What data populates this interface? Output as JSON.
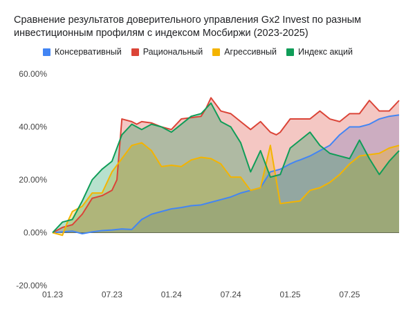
{
  "chart_data": {
    "type": "area",
    "title": "Сравнение результатов доверительного управления Gx2 Invest по разным инвестиционным профилям с индексом  Мосбиржи (2023-2025)",
    "xlabel": "",
    "ylabel": "",
    "x_ticks": [
      "01.23",
      "07.23",
      "01.24",
      "07.24",
      "01.25",
      "07.25"
    ],
    "y_ticks": [
      "60.00%",
      "40.00%",
      "20.00%",
      "0.00%",
      "-20.00%"
    ],
    "y_tick_values": [
      60,
      40,
      20,
      0,
      -20
    ],
    "ylim": [
      -20,
      60
    ],
    "xlim": [
      0,
      35
    ],
    "grid": false,
    "legend_position": "top",
    "series": [
      {
        "name": "Консервативный",
        "color": "#4285f4",
        "x": [
          0,
          1,
          2,
          3,
          4,
          5,
          6,
          7,
          8,
          9,
          10,
          11,
          12,
          13,
          14,
          15,
          16,
          17,
          18,
          19,
          20,
          21,
          22,
          23,
          24,
          24.6,
          25,
          26,
          27,
          28,
          29,
          30,
          31,
          32,
          33,
          34,
          35
        ],
        "values": [
          0,
          0.3,
          0.6,
          -0.4,
          0.3,
          0.8,
          1.0,
          1.4,
          1.2,
          5,
          7,
          8,
          9,
          9.5,
          10.2,
          10.5,
          11.5,
          12.5,
          13.5,
          15,
          16,
          17,
          23,
          24,
          26,
          27,
          27.5,
          29,
          31,
          33,
          37,
          40,
          40,
          41,
          43,
          44,
          44.5
        ]
      },
      {
        "name": "Рациональный",
        "color": "#db4437",
        "x": [
          0,
          1,
          1.5,
          2,
          3,
          4,
          5,
          6,
          6.5,
          7,
          8,
          8.5,
          9,
          10,
          11,
          12,
          13,
          14,
          15,
          15.5,
          16,
          17,
          18,
          19,
          20,
          21,
          22,
          22.6,
          23,
          24,
          25,
          26,
          27,
          28,
          29,
          30,
          31,
          32,
          33,
          34,
          35
        ],
        "values": [
          0,
          2,
          2.5,
          3,
          7,
          13,
          14,
          16,
          20,
          43,
          42,
          41,
          42,
          41.5,
          40,
          39,
          43,
          43.5,
          44,
          47,
          51,
          46,
          45,
          42,
          39,
          42,
          38,
          37,
          38,
          43,
          43,
          43,
          46,
          43,
          42,
          45,
          45,
          50,
          46,
          46,
          50
        ]
      },
      {
        "name": "Агрессивный",
        "color": "#f4b400",
        "x": [
          0,
          1,
          1.5,
          2,
          3,
          4,
          5,
          6,
          7,
          8,
          9,
          10,
          11,
          12,
          13,
          14,
          15,
          16,
          17,
          18,
          19,
          20,
          21,
          22,
          23,
          24,
          25,
          26,
          27,
          28,
          29,
          30,
          31,
          32,
          33,
          34,
          35
        ],
        "values": [
          0,
          -1,
          4,
          8,
          10,
          15,
          15,
          23,
          28,
          33,
          34,
          31,
          25,
          25.5,
          25,
          27.5,
          28.5,
          28,
          26,
          21,
          21,
          16,
          17,
          33,
          11,
          11.5,
          12,
          16,
          17,
          19,
          22,
          26,
          29,
          29.5,
          30,
          32,
          33
        ]
      },
      {
        "name": "Индекс акций",
        "color": "#0f9d58",
        "x": [
          0,
          1,
          2,
          3,
          4,
          5,
          6,
          7,
          8,
          9,
          10,
          11,
          12,
          13,
          14,
          15,
          16,
          17,
          18,
          19,
          20,
          21,
          22,
          23,
          24,
          25,
          26,
          27,
          28,
          29,
          30,
          31,
          32,
          33,
          34,
          35
        ],
        "values": [
          0,
          4,
          5,
          12,
          20,
          24,
          27,
          37,
          41,
          39,
          41,
          40,
          38,
          41,
          44,
          45,
          49,
          42,
          40,
          34,
          23,
          31,
          21,
          22,
          32,
          35,
          38,
          33,
          30,
          29,
          28,
          35,
          28,
          22,
          27,
          31
        ]
      }
    ]
  }
}
